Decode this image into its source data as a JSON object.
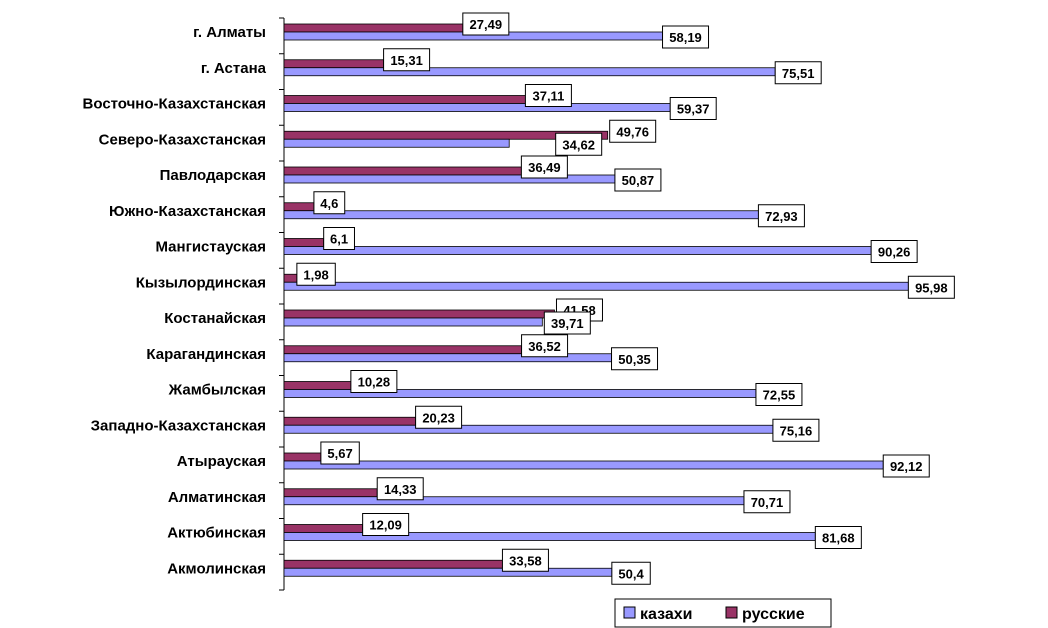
{
  "chart_data": {
    "type": "bar",
    "orientation": "horizontal",
    "title": "",
    "xlabel": "",
    "ylabel": "",
    "xlim": [
      0,
      100
    ],
    "grid": false,
    "legend_position": "bottom-right",
    "categories": [
      "г. Алматы",
      "г. Астана",
      "Восточно-Казахстанская",
      "Северо-Казахстанская",
      "Павлодарская",
      "Южно-Казахстанская",
      "Мангистауская",
      "Кызылординская",
      "Костанайская",
      "Карагандинская",
      "Жамбылская",
      "Западно-Казахстанская",
      "Атырауская",
      "Алматинская",
      "Актюбинская",
      "Акмолинская"
    ],
    "series": [
      {
        "name": "казахи",
        "color": "#9999ff",
        "values": [
          58.19,
          75.51,
          59.37,
          34.62,
          50.87,
          72.93,
          90.26,
          95.98,
          39.71,
          50.35,
          72.55,
          75.16,
          92.12,
          70.71,
          81.68,
          50.4
        ],
        "labels": [
          "58,19",
          "75,51",
          "59,37",
          "34,62",
          "50,87",
          "72,93",
          "90,26",
          "95,98",
          "39,71",
          "50,35",
          "72,55",
          "75,16",
          "92,12",
          "70,71",
          "81,68",
          "50,4"
        ]
      },
      {
        "name": "русские",
        "color": "#993366",
        "values": [
          27.49,
          15.31,
          37.11,
          49.76,
          36.49,
          4.6,
          6.1,
          1.98,
          41.58,
          36.52,
          10.28,
          20.23,
          5.67,
          14.33,
          12.09,
          33.58
        ],
        "labels": [
          "27,49",
          "15,31",
          "37,11",
          "49,76",
          "36,49",
          "4,6",
          "6,1",
          "1,98",
          "41,58",
          "36,52",
          "10,28",
          "20,23",
          "5,67",
          "14,33",
          "12,09",
          "33,58"
        ]
      }
    ],
    "legend": [
      "казахи",
      "русские"
    ]
  }
}
